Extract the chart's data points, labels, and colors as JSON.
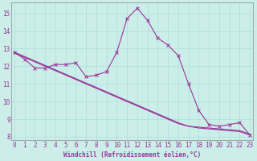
{
  "xlabel": "Windchill (Refroidissement éolien,°C)",
  "background_color": "#cceee8",
  "grid_color": "#aadddd",
  "line_color": "#993399",
  "hours": [
    0,
    1,
    2,
    3,
    4,
    5,
    6,
    7,
    8,
    9,
    10,
    11,
    12,
    13,
    14,
    15,
    16,
    17,
    18,
    19,
    20,
    21,
    22,
    23
  ],
  "line_main": [
    12.8,
    12.4,
    11.9,
    11.9,
    12.1,
    12.1,
    12.2,
    11.4,
    11.5,
    11.7,
    12.8,
    14.7,
    15.3,
    14.6,
    13.6,
    13.2,
    12.6,
    11.0,
    9.5,
    8.7,
    8.6,
    8.7,
    8.8,
    8.1
  ],
  "line_trend1": [
    12.8,
    12.55,
    12.3,
    12.05,
    11.8,
    11.55,
    11.3,
    11.05,
    10.8,
    10.55,
    10.3,
    10.05,
    9.8,
    9.55,
    9.3,
    9.05,
    8.8,
    8.6,
    8.55,
    8.5,
    8.45,
    8.4,
    8.35,
    8.15
  ],
  "line_trend2": [
    12.75,
    12.5,
    12.25,
    12.0,
    11.75,
    11.5,
    11.25,
    11.0,
    10.75,
    10.5,
    10.25,
    10.0,
    9.75,
    9.5,
    9.25,
    9.0,
    8.75,
    8.6,
    8.5,
    8.45,
    8.4,
    8.35,
    8.3,
    8.1
  ],
  "ylim": [
    7.8,
    15.6
  ],
  "yticks": [
    8,
    9,
    10,
    11,
    12,
    13,
    14,
    15
  ],
  "xticks": [
    0,
    1,
    2,
    3,
    4,
    5,
    6,
    7,
    8,
    9,
    10,
    11,
    12,
    13,
    14,
    15,
    16,
    17,
    18,
    19,
    20,
    21,
    22,
    23
  ],
  "xlim": [
    -0.3,
    23.3
  ]
}
